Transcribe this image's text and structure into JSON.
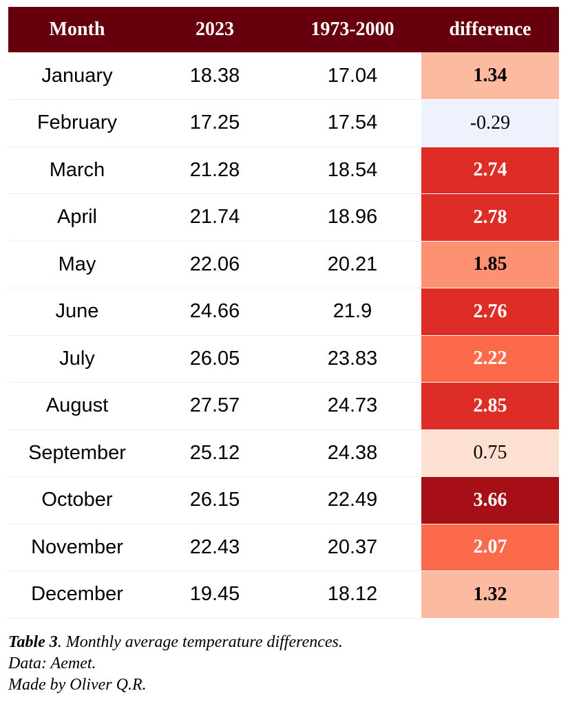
{
  "chart_data": {
    "type": "table",
    "columns": [
      "Month",
      "2023",
      "1973-2000",
      "difference"
    ],
    "rows": [
      {
        "month": "January",
        "y2023": "18.38",
        "base": "17.04",
        "diff": "1.34",
        "color": "#fcbba1",
        "text_color": "#000000",
        "bold": true
      },
      {
        "month": "February",
        "y2023": "17.25",
        "base": "17.54",
        "diff": "-0.29",
        "color": "#eef2fc",
        "text_color": "#000000",
        "bold": false
      },
      {
        "month": "March",
        "y2023": "21.28",
        "base": "18.54",
        "diff": "2.74",
        "color": "#de2d26",
        "text_color": "#ffffff",
        "bold": true
      },
      {
        "month": "April",
        "y2023": "21.74",
        "base": "18.96",
        "diff": "2.78",
        "color": "#de2d26",
        "text_color": "#ffffff",
        "bold": true
      },
      {
        "month": "May",
        "y2023": "22.06",
        "base": "20.21",
        "diff": "1.85",
        "color": "#fc9272",
        "text_color": "#000000",
        "bold": true
      },
      {
        "month": "June",
        "y2023": "24.66",
        "base": "21.9",
        "diff": "2.76",
        "color": "#de2d26",
        "text_color": "#ffffff",
        "bold": true
      },
      {
        "month": "July",
        "y2023": "26.05",
        "base": "23.83",
        "diff": "2.22",
        "color": "#fb6a4a",
        "text_color": "#ffffff",
        "bold": true
      },
      {
        "month": "August",
        "y2023": "27.57",
        "base": "24.73",
        "diff": "2.85",
        "color": "#de2d26",
        "text_color": "#ffffff",
        "bold": true
      },
      {
        "month": "September",
        "y2023": "25.12",
        "base": "24.38",
        "diff": "0.75",
        "color": "#fee0d2",
        "text_color": "#000000",
        "bold": false
      },
      {
        "month": "October",
        "y2023": "26.15",
        "base": "22.49",
        "diff": "3.66",
        "color": "#a50f15",
        "text_color": "#ffffff",
        "bold": true
      },
      {
        "month": "November",
        "y2023": "22.43",
        "base": "20.37",
        "diff": "2.07",
        "color": "#fb6a4a",
        "text_color": "#ffffff",
        "bold": true
      },
      {
        "month": "December",
        "y2023": "19.45",
        "base": "18.12",
        "diff": "1.32",
        "color": "#fcbba1",
        "text_color": "#000000",
        "bold": true
      }
    ],
    "header_color": "#67000d"
  },
  "caption": {
    "label": "Table 3",
    "text": ". Monthly average temperature differences.",
    "line2": "Data: Aemet.",
    "line3": "Made by Oliver Q.R."
  }
}
